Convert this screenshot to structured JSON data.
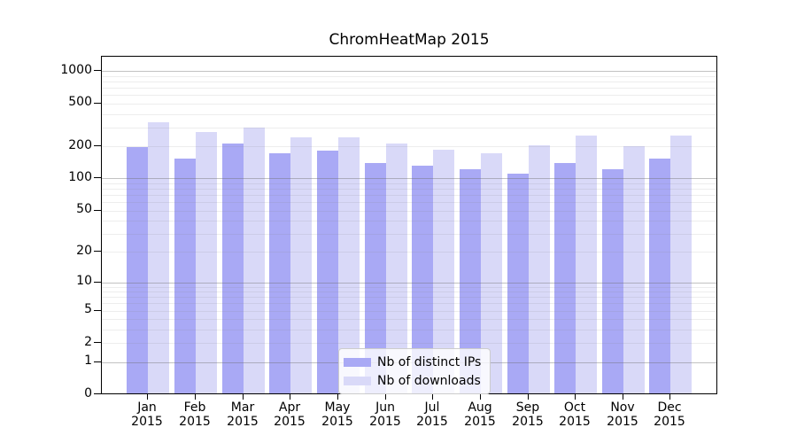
{
  "title": "ChromHeatMap 2015",
  "x_axis": {
    "months": [
      "Jan",
      "Feb",
      "Mar",
      "Apr",
      "May",
      "Jun",
      "Jul",
      "Aug",
      "Sep",
      "Oct",
      "Nov",
      "Dec"
    ],
    "year": "2015"
  },
  "chart_data": {
    "type": "bar",
    "title": "ChromHeatMap 2015",
    "categories": [
      "Jan 2015",
      "Feb 2015",
      "Mar 2015",
      "Apr 2015",
      "May 2015",
      "Jun 2015",
      "Jul 2015",
      "Aug 2015",
      "Sep 2015",
      "Oct 2015",
      "Nov 2015",
      "Dec 2015"
    ],
    "series": [
      {
        "name": "Nb of distinct IPs",
        "color": "#a9a9f5",
        "values": [
          196,
          153,
          212,
          171,
          183,
          139,
          133,
          122,
          111,
          140,
          121,
          155
        ]
      },
      {
        "name": "Nb of downloads",
        "color": "#d9d9f8",
        "values": [
          335,
          270,
          297,
          244,
          241,
          212,
          185,
          173,
          203,
          251,
          200,
          253
        ]
      }
    ],
    "yscale": "log1p",
    "ylim": [
      0,
      1300
    ],
    "yticks": [
      0,
      1,
      2,
      5,
      10,
      20,
      50,
      100,
      200,
      500,
      1000
    ],
    "minor_grid_decades": [
      1,
      10,
      100
    ],
    "grid": "both",
    "legend_position": "lower-center",
    "grid_major_color": "#6e6e6e",
    "grid_minor_color": "#e9e9e9"
  }
}
